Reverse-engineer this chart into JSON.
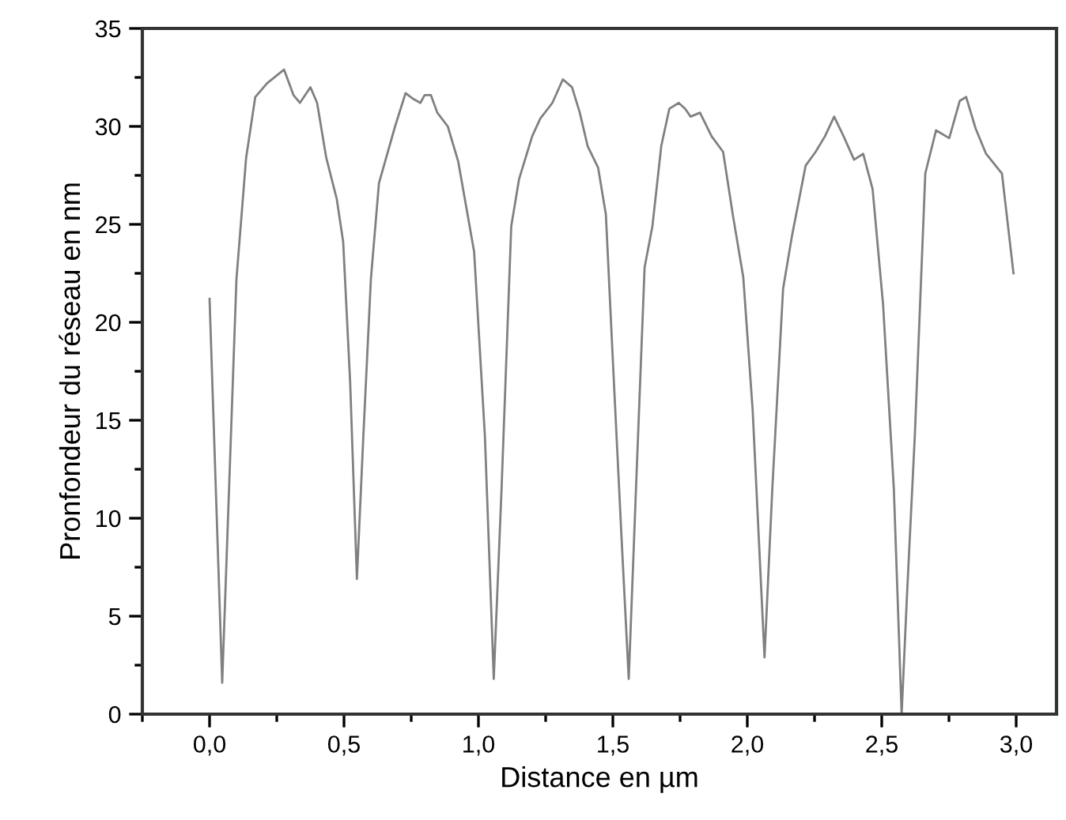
{
  "chart_data": {
    "type": "line",
    "xlabel": "Distance en µm",
    "ylabel": "Pronfondeur du réseau en nm",
    "xlim": [
      -0.25,
      3.15
    ],
    "ylim": [
      0,
      35
    ],
    "xticks": [
      {
        "value": -0.25,
        "label": null
      },
      {
        "value": 0,
        "label": "0,0"
      },
      {
        "value": 0.25,
        "label": null
      },
      {
        "value": 0.5,
        "label": "0,5"
      },
      {
        "value": 0.75,
        "label": null
      },
      {
        "value": 1,
        "label": "1,0"
      },
      {
        "value": 1.25,
        "label": null
      },
      {
        "value": 1.5,
        "label": "1,5"
      },
      {
        "value": 1.75,
        "label": null
      },
      {
        "value": 2,
        "label": "2,0"
      },
      {
        "value": 2.25,
        "label": null
      },
      {
        "value": 2.5,
        "label": "2,5"
      },
      {
        "value": 2.75,
        "label": null
      },
      {
        "value": 3,
        "label": "3,0"
      }
    ],
    "yticks": [
      0,
      {
        "value": 2.5,
        "label": null
      },
      5,
      {
        "value": 7.5,
        "label": null
      },
      10,
      {
        "value": 12.5,
        "label": null
      },
      15,
      {
        "value": 17.5,
        "label": null
      },
      20,
      {
        "value": 22.5,
        "label": null
      },
      25,
      {
        "value": 27.5,
        "label": null
      },
      30,
      {
        "value": 32.5,
        "label": null
      },
      35
    ],
    "grid": false,
    "marker": "none",
    "line_style": "solid",
    "series": [
      {
        "color": "#808080",
        "x": [
          0,
          0.047,
          0.1,
          0.136,
          0.17,
          0.214,
          0.277,
          0.312,
          0.336,
          0.375,
          0.4,
          0.434,
          0.473,
          0.497,
          0.523,
          0.548,
          0.572,
          0.6,
          0.63,
          0.69,
          0.729,
          0.758,
          0.784,
          0.8,
          0.823,
          0.847,
          0.886,
          0.925,
          0.984,
          1.024,
          1.057,
          1.086,
          1.122,
          1.151,
          1.2,
          1.23,
          1.275,
          1.314,
          1.348,
          1.377,
          1.406,
          1.445,
          1.474,
          1.504,
          1.533,
          1.559,
          1.586,
          1.618,
          1.647,
          1.68,
          1.71,
          1.745,
          1.769,
          1.789,
          1.824,
          1.867,
          1.91,
          1.946,
          1.985,
          2.02,
          2.064,
          2.093,
          2.133,
          2.166,
          2.217,
          2.254,
          2.289,
          2.323,
          2.358,
          2.397,
          2.431,
          2.466,
          2.505,
          2.545,
          2.574,
          2.594,
          2.623,
          2.662,
          2.702,
          2.751,
          2.79,
          2.814,
          2.849,
          2.888,
          2.947,
          2.99
        ],
        "values": [
          21.2,
          1.6,
          22.2,
          28.4,
          31.5,
          32.2,
          32.9,
          31.6,
          31.2,
          32.0,
          31.2,
          28.4,
          26.3,
          24.1,
          16.9,
          6.9,
          14.2,
          22.2,
          27.1,
          30.0,
          31.7,
          31.4,
          31.2,
          31.6,
          31.6,
          30.7,
          30.0,
          28.2,
          23.6,
          14.2,
          1.8,
          11.5,
          24.9,
          27.3,
          29.5,
          30.4,
          31.2,
          32.4,
          32.0,
          30.7,
          29.0,
          27.9,
          25.5,
          16.9,
          8.8,
          1.8,
          11.5,
          22.8,
          24.9,
          29.0,
          30.9,
          31.2,
          30.9,
          30.5,
          30.7,
          29.5,
          28.7,
          25.5,
          22.3,
          15.5,
          2.9,
          11.5,
          21.7,
          24.4,
          28.0,
          28.7,
          29.5,
          30.5,
          29.5,
          28.3,
          28.6,
          26.8,
          20.9,
          11.5,
          0,
          6.1,
          14.2,
          27.6,
          29.8,
          29.4,
          31.3,
          31.5,
          29.9,
          28.6,
          27.6,
          22.5
        ]
      }
    ]
  }
}
